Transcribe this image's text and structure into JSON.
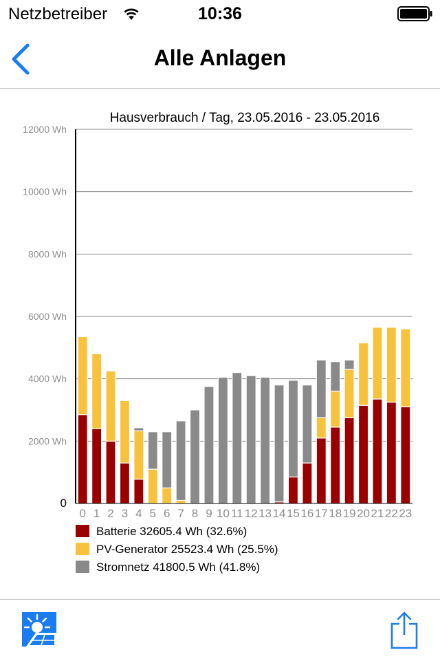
{
  "status_bar": {
    "carrier": "Netzbetreiber",
    "time": "10:36",
    "wifi_icon": "wifi-icon",
    "battery_icon": "battery-full-icon"
  },
  "nav": {
    "title": "Alle Anlagen",
    "back_icon": "chevron-left-icon"
  },
  "toolbar": {
    "logo_icon": "solar-panel-sun-icon",
    "share_icon": "share-icon"
  },
  "colors": {
    "accent": "#1a7cf0",
    "batterie": "#9a0000",
    "pv": "#f9c23c",
    "stromnetz": "#8a8a8a",
    "grid": "#888888",
    "axis_text": "#8e8e8e"
  },
  "chart_data": {
    "type": "bar",
    "stacked": true,
    "title": "Hausverbrauch / Tag, 23.05.2016 - 23.05.2016",
    "categories": [
      "0",
      "1",
      "2",
      "3",
      "4",
      "5",
      "6",
      "7",
      "8",
      "9",
      "10",
      "11",
      "12",
      "13",
      "14",
      "15",
      "16",
      "17",
      "18",
      "19",
      "20",
      "21",
      "22",
      "23"
    ],
    "ylim": [
      0,
      12000
    ],
    "yticks": [
      0,
      2000,
      4000,
      6000,
      8000,
      10000,
      12000
    ],
    "ytick_labels": [
      "0",
      "2000 Wh",
      "4000 Wh",
      "6000 Wh",
      "8000 Wh",
      "10000 Wh",
      "12000 Wh"
    ],
    "grid": true,
    "legend_position": "bottom-left",
    "series": [
      {
        "name": "Batterie",
        "legend_label": "Batterie 32605.4 Wh (32.6%)",
        "color": "#9a0000",
        "values": [
          2850,
          2400,
          2000,
          1300,
          780,
          0,
          0,
          0,
          0,
          0,
          0,
          0,
          0,
          0,
          50,
          850,
          1300,
          2100,
          2450,
          2750,
          3150,
          3350,
          3250,
          3100
        ]
      },
      {
        "name": "PV-Generator",
        "legend_label": "PV-Generator 25523.4 Wh (25.5%)",
        "color": "#f9c23c",
        "values": [
          2500,
          2400,
          2250,
          2000,
          1550,
          1100,
          500,
          100,
          0,
          0,
          0,
          0,
          0,
          0,
          0,
          0,
          0,
          650,
          1150,
          1550,
          2000,
          2300,
          2400,
          2500
        ]
      },
      {
        "name": "Stromnetz",
        "legend_label": "Stromnetz 41800.5 Wh (41.8%)",
        "color": "#8a8a8a",
        "values": [
          0,
          0,
          0,
          0,
          100,
          1200,
          1800,
          2550,
          3000,
          3750,
          4050,
          4200,
          4100,
          4050,
          3750,
          3100,
          2500,
          1850,
          950,
          300,
          0,
          0,
          0,
          0
        ]
      }
    ]
  }
}
